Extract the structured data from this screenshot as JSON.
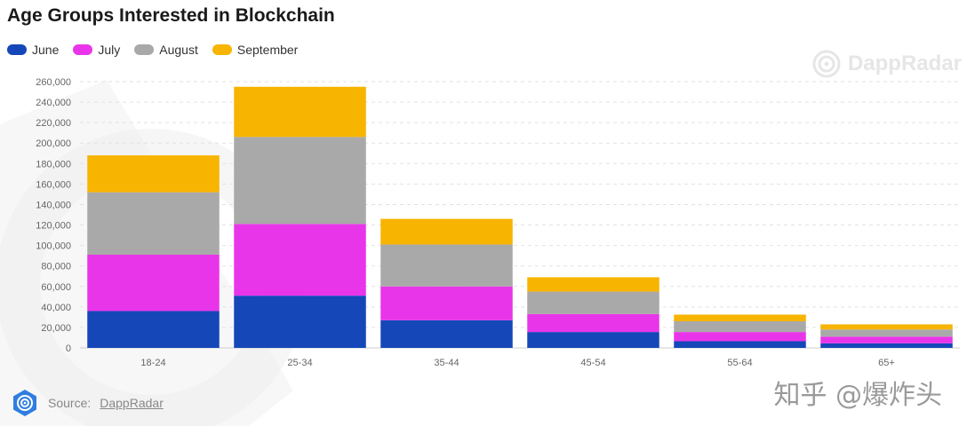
{
  "title": "Age Groups Interested in Blockchain",
  "watermark_text": "DappRadar",
  "source_prefix": "Source:",
  "source_link": "DappRadar",
  "cn_watermark": "知乎 @爆炸头",
  "colors": {
    "June": "#1547b9",
    "July": "#e935ea",
    "August": "#a9a9a9",
    "September": "#f7b400"
  },
  "chart_data": {
    "type": "bar",
    "stacked": true,
    "categories": [
      "18-24",
      "25-34",
      "35-44",
      "45-54",
      "55-64",
      "65+"
    ],
    "series": [
      {
        "name": "June",
        "values": [
          36000,
          51000,
          27000,
          15500,
          6500,
          4500
        ]
      },
      {
        "name": "July",
        "values": [
          55000,
          70000,
          33000,
          17500,
          9000,
          6500
        ]
      },
      {
        "name": "August",
        "values": [
          61000,
          85000,
          41000,
          22000,
          10500,
          7000
        ]
      },
      {
        "name": "September",
        "values": [
          36000,
          49000,
          25000,
          14000,
          6500,
          5000
        ]
      }
    ],
    "ylim": [
      0,
      260000
    ],
    "yticks": [
      0,
      20000,
      40000,
      60000,
      80000,
      100000,
      120000,
      140000,
      160000,
      180000,
      200000,
      220000,
      240000,
      260000
    ],
    "ytick_labels": [
      "0",
      "20,000",
      "40,000",
      "60,000",
      "80,000",
      "100,000",
      "120,000",
      "140,000",
      "160,000",
      "180,000",
      "200,000",
      "220,000",
      "240,000",
      "260,000"
    ],
    "grid": true,
    "legend": "top-left"
  }
}
